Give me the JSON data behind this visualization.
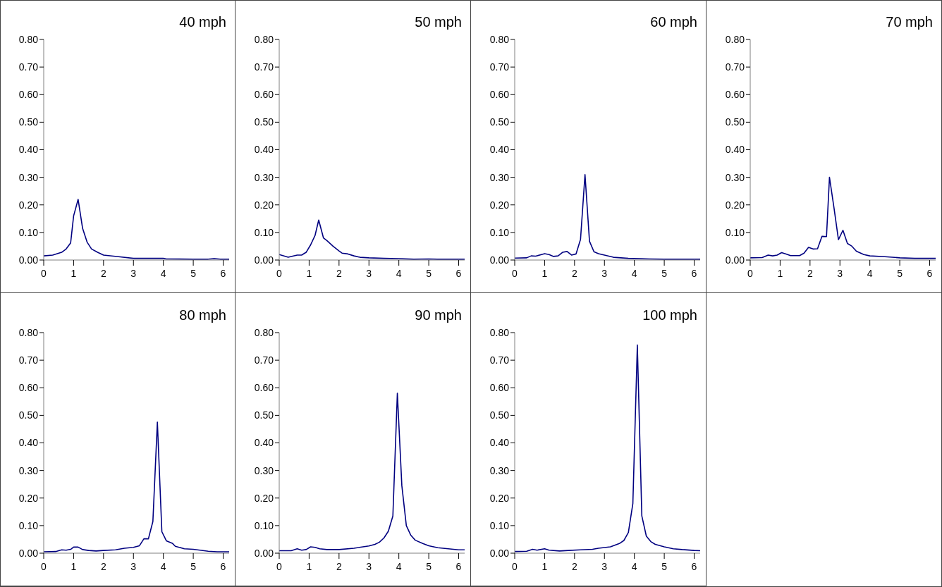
{
  "chart_data": [
    {
      "type": "line",
      "title": "40 mph",
      "color": "#000080",
      "xlim": [
        0,
        6.2
      ],
      "xticks": [
        0,
        1,
        2,
        3,
        4,
        5,
        6
      ],
      "ylim": [
        0,
        0.8
      ],
      "yticks": [
        {
          "value": 0,
          "label": "0.00"
        },
        {
          "value": 0.1,
          "label": "0.10"
        },
        {
          "value": 0.2,
          "label": "0.20"
        },
        {
          "value": 0.3,
          "label": "0.30"
        },
        {
          "value": 0.4,
          "label": "0.40"
        },
        {
          "value": 0.5,
          "label": "0.50"
        },
        {
          "value": 0.6,
          "label": "0.60"
        },
        {
          "value": 0.7,
          "label": "0.70"
        },
        {
          "value": 0.8,
          "label": "0.80"
        }
      ],
      "x": [
        0,
        0.3,
        0.6,
        0.75,
        0.9,
        1.0,
        1.15,
        1.3,
        1.45,
        1.6,
        1.8,
        2.0,
        2.5,
        3.0,
        4.0,
        4.1,
        5.0,
        5.5,
        5.7,
        5.9,
        6.2
      ],
      "values": [
        0.015,
        0.018,
        0.028,
        0.04,
        0.062,
        0.16,
        0.22,
        0.115,
        0.065,
        0.04,
        0.028,
        0.018,
        0.012,
        0.006,
        0.006,
        0.004,
        0.003,
        0.003,
        0.005,
        0.003,
        0.003
      ]
    },
    {
      "type": "line",
      "title": "50 mph",
      "color": "#000080",
      "xlim": [
        0,
        6.2
      ],
      "xticks": [
        0,
        1,
        2,
        3,
        4,
        5,
        6
      ],
      "ylim": [
        0,
        0.8
      ],
      "yticks": [
        {
          "value": 0,
          "label": "0.00"
        },
        {
          "value": 0.1,
          "label": "0.10"
        },
        {
          "value": 0.2,
          "label": "0.20"
        },
        {
          "value": 0.3,
          "label": "0.30"
        },
        {
          "value": 0.4,
          "label": "0.40"
        },
        {
          "value": 0.5,
          "label": "0.50"
        },
        {
          "value": 0.6,
          "label": "0.60"
        },
        {
          "value": 0.7,
          "label": "0.70"
        },
        {
          "value": 0.8,
          "label": "0.80"
        }
      ],
      "x": [
        0,
        0.3,
        0.6,
        0.75,
        0.9,
        1.05,
        1.2,
        1.32,
        1.48,
        1.6,
        1.8,
        2.0,
        2.1,
        2.3,
        2.5,
        2.7,
        3.0,
        3.5,
        4.0,
        4.5,
        5.0,
        5.3,
        6.2
      ],
      "values": [
        0.02,
        0.01,
        0.018,
        0.018,
        0.028,
        0.055,
        0.09,
        0.145,
        0.08,
        0.07,
        0.05,
        0.033,
        0.025,
        0.022,
        0.015,
        0.01,
        0.008,
        0.006,
        0.005,
        0.003,
        0.004,
        0.003,
        0.003
      ]
    },
    {
      "type": "line",
      "title": "60 mph",
      "color": "#000080",
      "xlim": [
        0,
        6.2
      ],
      "xticks": [
        0,
        1,
        2,
        3,
        4,
        5,
        6
      ],
      "ylim": [
        0,
        0.8
      ],
      "yticks": [
        {
          "value": 0,
          "label": "0.00"
        },
        {
          "value": 0.1,
          "label": "0.10"
        },
        {
          "value": 0.2,
          "label": "0.20"
        },
        {
          "value": 0.3,
          "label": "0.30"
        },
        {
          "value": 0.4,
          "label": "0.40"
        },
        {
          "value": 0.5,
          "label": "0.50"
        },
        {
          "value": 0.6,
          "label": "0.60"
        },
        {
          "value": 0.7,
          "label": "0.70"
        },
        {
          "value": 0.8,
          "label": "0.80"
        }
      ],
      "x": [
        0,
        0.4,
        0.55,
        0.7,
        1.0,
        1.15,
        1.3,
        1.45,
        1.6,
        1.75,
        1.9,
        2.05,
        2.2,
        2.35,
        2.5,
        2.65,
        2.8,
        3.0,
        3.3,
        3.8,
        4.5,
        5.0,
        6.2
      ],
      "values": [
        0.007,
        0.008,
        0.015,
        0.014,
        0.023,
        0.02,
        0.013,
        0.015,
        0.028,
        0.031,
        0.018,
        0.022,
        0.075,
        0.31,
        0.068,
        0.03,
        0.023,
        0.018,
        0.01,
        0.006,
        0.004,
        0.003,
        0.003
      ]
    },
    {
      "type": "line",
      "title": "70 mph",
      "color": "#000080",
      "xlim": [
        0,
        6.2
      ],
      "xticks": [
        0,
        1,
        2,
        3,
        4,
        5,
        6
      ],
      "ylim": [
        0,
        0.8
      ],
      "yticks": [
        {
          "value": 0,
          "label": "0.00"
        },
        {
          "value": 0.1,
          "label": "0.10"
        },
        {
          "value": 0.2,
          "label": "0.20"
        },
        {
          "value": 0.3,
          "label": "0.30"
        },
        {
          "value": 0.4,
          "label": "0.40"
        },
        {
          "value": 0.5,
          "label": "0.50"
        },
        {
          "value": 0.6,
          "label": "0.60"
        },
        {
          "value": 0.7,
          "label": "0.70"
        },
        {
          "value": 0.8,
          "label": "0.80"
        }
      ],
      "x": [
        0,
        0.4,
        0.6,
        0.75,
        0.9,
        1.05,
        1.2,
        1.35,
        1.5,
        1.65,
        1.8,
        1.95,
        2.1,
        2.25,
        2.4,
        2.55,
        2.65,
        2.8,
        2.95,
        3.1,
        3.25,
        3.4,
        3.55,
        3.8,
        4.0,
        4.5,
        5.0,
        5.5,
        6.2
      ],
      "values": [
        0.008,
        0.009,
        0.018,
        0.015,
        0.018,
        0.027,
        0.022,
        0.016,
        0.016,
        0.016,
        0.025,
        0.046,
        0.04,
        0.041,
        0.086,
        0.085,
        0.3,
        0.19,
        0.074,
        0.108,
        0.06,
        0.05,
        0.032,
        0.02,
        0.015,
        0.012,
        0.008,
        0.006,
        0.006
      ]
    },
    {
      "type": "line",
      "title": "80 mph",
      "color": "#000080",
      "xlim": [
        0,
        6.2
      ],
      "xticks": [
        0,
        1,
        2,
        3,
        4,
        5,
        6
      ],
      "ylim": [
        0,
        0.8
      ],
      "yticks": [
        {
          "value": 0,
          "label": "0.00"
        },
        {
          "value": 0.1,
          "label": "0.10"
        },
        {
          "value": 0.2,
          "label": "0.20"
        },
        {
          "value": 0.3,
          "label": "0.30"
        },
        {
          "value": 0.4,
          "label": "0.40"
        },
        {
          "value": 0.5,
          "label": "0.50"
        },
        {
          "value": 0.6,
          "label": "0.60"
        },
        {
          "value": 0.7,
          "label": "0.70"
        },
        {
          "value": 0.8,
          "label": "0.80"
        }
      ],
      "x": [
        0,
        0.4,
        0.6,
        0.75,
        0.9,
        1.0,
        1.15,
        1.3,
        1.5,
        1.75,
        2.0,
        2.4,
        2.7,
        3.0,
        3.2,
        3.35,
        3.5,
        3.65,
        3.8,
        3.95,
        4.1,
        4.3,
        4.4,
        4.7,
        5.0,
        5.5,
        5.8,
        6.2
      ],
      "values": [
        0.005,
        0.006,
        0.012,
        0.011,
        0.014,
        0.022,
        0.022,
        0.013,
        0.01,
        0.008,
        0.01,
        0.012,
        0.018,
        0.021,
        0.027,
        0.052,
        0.052,
        0.115,
        0.475,
        0.078,
        0.045,
        0.036,
        0.025,
        0.016,
        0.014,
        0.007,
        0.005,
        0.005
      ]
    },
    {
      "type": "line",
      "title": "90 mph",
      "color": "#000080",
      "xlim": [
        0,
        6.2
      ],
      "xticks": [
        0,
        1,
        2,
        3,
        4,
        5,
        6
      ],
      "ylim": [
        0,
        0.8
      ],
      "yticks": [
        {
          "value": 0,
          "label": "0.00"
        },
        {
          "value": 0.1,
          "label": "0.10"
        },
        {
          "value": 0.2,
          "label": "0.20"
        },
        {
          "value": 0.3,
          "label": "0.30"
        },
        {
          "value": 0.4,
          "label": "0.40"
        },
        {
          "value": 0.5,
          "label": "0.50"
        },
        {
          "value": 0.6,
          "label": "0.60"
        },
        {
          "value": 0.7,
          "label": "0.70"
        },
        {
          "value": 0.8,
          "label": "0.80"
        }
      ],
      "x": [
        0,
        0.4,
        0.6,
        0.75,
        0.9,
        1.05,
        1.2,
        1.35,
        1.6,
        2.0,
        2.5,
        2.8,
        3.0,
        3.2,
        3.35,
        3.5,
        3.65,
        3.8,
        3.95,
        4.1,
        4.25,
        4.4,
        4.55,
        4.8,
        5.0,
        5.3,
        6.0,
        6.2
      ],
      "values": [
        0.009,
        0.009,
        0.016,
        0.011,
        0.013,
        0.023,
        0.021,
        0.016,
        0.013,
        0.013,
        0.018,
        0.023,
        0.026,
        0.032,
        0.04,
        0.055,
        0.08,
        0.135,
        0.58,
        0.245,
        0.1,
        0.065,
        0.047,
        0.035,
        0.027,
        0.02,
        0.012,
        0.012
      ]
    },
    {
      "type": "line",
      "title": "100 mph",
      "color": "#000080",
      "xlim": [
        0,
        6.2
      ],
      "xticks": [
        0,
        1,
        2,
        3,
        4,
        5,
        6
      ],
      "ylim": [
        0,
        0.8
      ],
      "yticks": [
        {
          "value": 0,
          "label": "0.00"
        },
        {
          "value": 0.1,
          "label": "0.10"
        },
        {
          "value": 0.2,
          "label": "0.20"
        },
        {
          "value": 0.3,
          "label": "0.30"
        },
        {
          "value": 0.4,
          "label": "0.40"
        },
        {
          "value": 0.5,
          "label": "0.50"
        },
        {
          "value": 0.6,
          "label": "0.60"
        },
        {
          "value": 0.7,
          "label": "0.70"
        },
        {
          "value": 0.8,
          "label": "0.80"
        }
      ],
      "x": [
        0,
        0.4,
        0.6,
        0.75,
        1.0,
        1.15,
        1.5,
        1.8,
        2.2,
        2.6,
        2.8,
        3.2,
        3.5,
        3.65,
        3.8,
        3.95,
        4.1,
        4.25,
        4.4,
        4.55,
        4.7,
        5.0,
        5.3,
        5.6,
        6.0,
        6.2
      ],
      "values": [
        0.006,
        0.007,
        0.014,
        0.011,
        0.016,
        0.011,
        0.008,
        0.01,
        0.012,
        0.014,
        0.018,
        0.023,
        0.035,
        0.046,
        0.075,
        0.18,
        0.755,
        0.135,
        0.062,
        0.042,
        0.032,
        0.023,
        0.016,
        0.013,
        0.01,
        0.009
      ]
    }
  ]
}
